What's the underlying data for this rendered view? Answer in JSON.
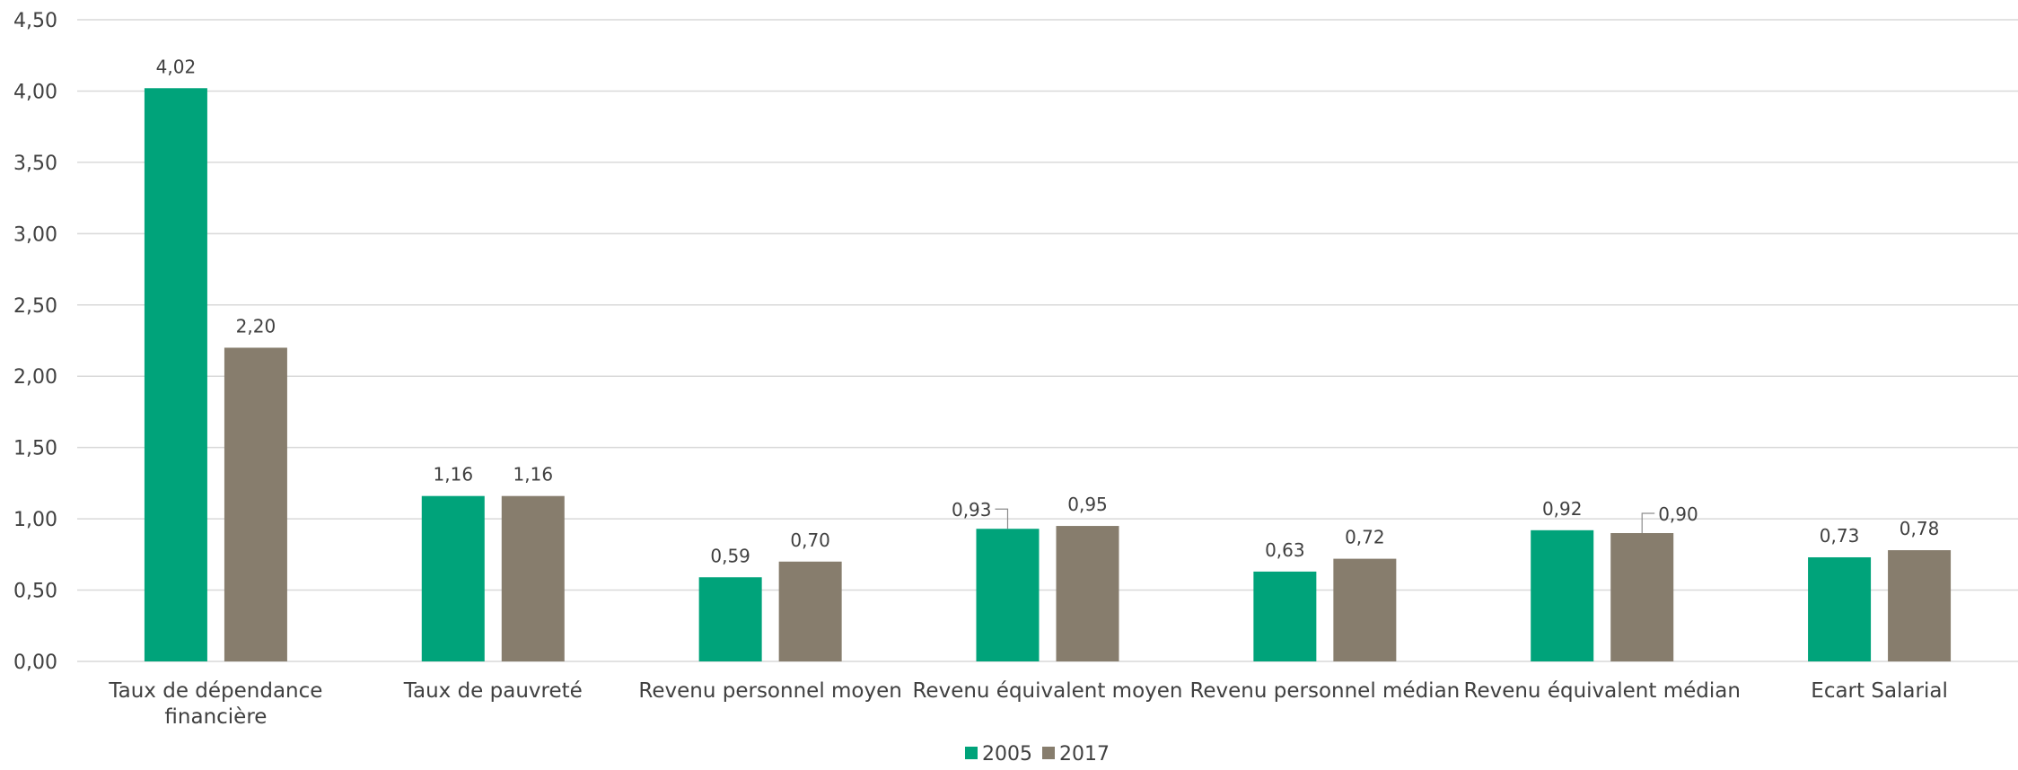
{
  "chart_data": {
    "type": "bar",
    "title": "",
    "xlabel": "",
    "ylabel": "",
    "ylim": [
      0,
      4.5
    ],
    "yticks": [
      "0,00",
      "0,50",
      "1,00",
      "1,50",
      "2,00",
      "2,50",
      "3,00",
      "3,50",
      "4,00",
      "4,50"
    ],
    "grid": true,
    "legend_position": "bottom",
    "categories": [
      [
        "Taux de dépendance",
        "financière"
      ],
      [
        "Taux de pauvreté"
      ],
      [
        "Revenu personnel moyen"
      ],
      [
        "Revenu équivalent moyen"
      ],
      [
        "Revenu personnel médian"
      ],
      [
        "Revenu équivalent médian"
      ],
      [
        "Ecart Salarial"
      ]
    ],
    "series": [
      {
        "name": "2005",
        "color": "#00a37a",
        "values": [
          4.02,
          1.16,
          0.59,
          0.93,
          0.63,
          0.92,
          0.73
        ],
        "labels": [
          "4,02",
          "1,16",
          "0,59",
          "0,93",
          "0,63",
          "0,92",
          "0,73"
        ]
      },
      {
        "name": "2017",
        "color": "#877d6d",
        "values": [
          2.2,
          1.16,
          0.7,
          0.95,
          0.72,
          0.9,
          0.78
        ],
        "labels": [
          "2,20",
          "1,16",
          "0,70",
          "0,95",
          "0,72",
          "0,90",
          "0,78"
        ]
      }
    ]
  }
}
